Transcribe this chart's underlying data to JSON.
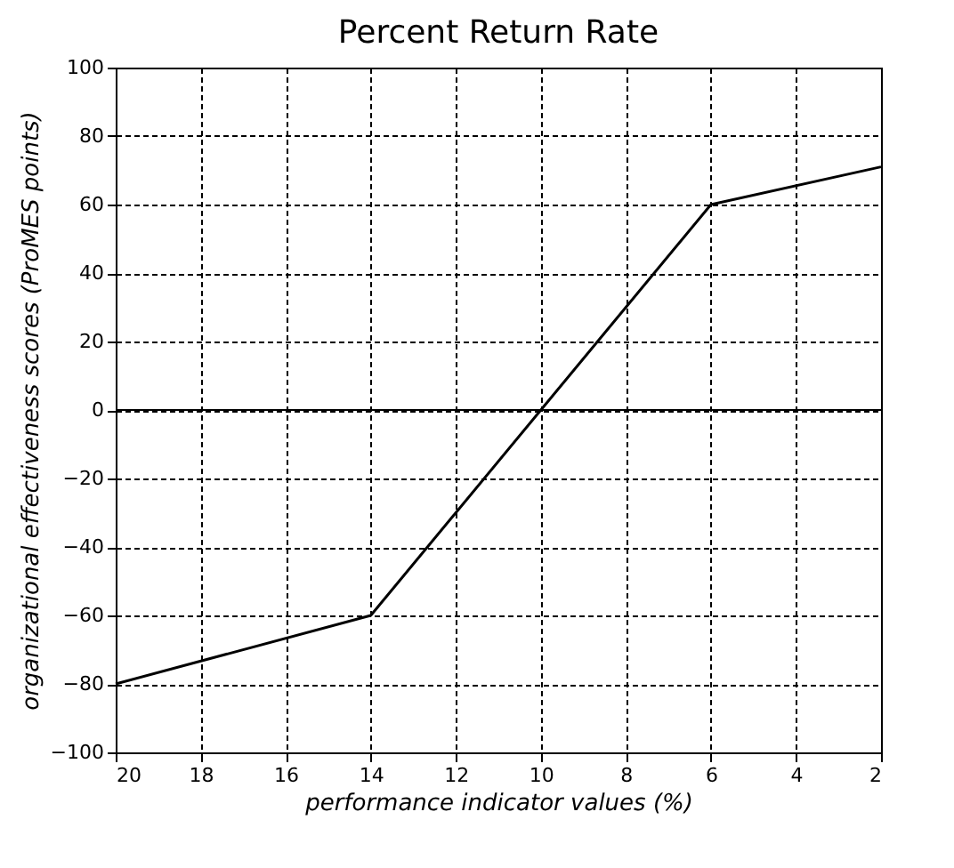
{
  "chart_data": {
    "type": "line",
    "title": "Percent Return Rate",
    "xlabel": "performance indicator values (%)",
    "ylabel": "organizational effectiveness scores (ProMES points)",
    "x": [
      20,
      14,
      10,
      6,
      2
    ],
    "series": [
      {
        "color": "#000000",
        "values": [
          -80,
          -60,
          0,
          60,
          71
        ]
      }
    ],
    "xlim": [
      20,
      2
    ],
    "xticks": [
      20,
      18,
      16,
      14,
      12,
      10,
      8,
      6,
      4,
      2
    ],
    "ylim": [
      -100,
      100
    ],
    "yticks": [
      -100,
      -80,
      -60,
      -40,
      -20,
      0,
      20,
      40,
      60,
      80,
      100
    ],
    "grid": true,
    "marker": "none",
    "line_style": "solid",
    "ref_lines": [
      {
        "axis": "y",
        "value": 0,
        "color": "#000000",
        "line_style": "solid"
      }
    ]
  }
}
